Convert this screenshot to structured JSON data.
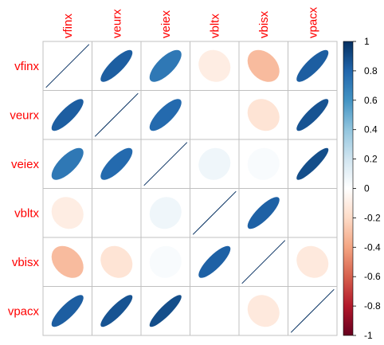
{
  "chart_data": {
    "type": "heatmap",
    "variables": [
      "vfinx",
      "veurx",
      "veiex",
      "vbltx",
      "vbisx",
      "vpacx"
    ],
    "matrix": [
      [
        1.0,
        0.83,
        0.72,
        -0.1,
        -0.32,
        0.83
      ],
      [
        0.83,
        1.0,
        0.78,
        0.0,
        -0.15,
        0.87
      ],
      [
        0.72,
        0.78,
        1.0,
        0.07,
        0.03,
        0.89
      ],
      [
        -0.1,
        0.0,
        0.07,
        1.0,
        0.82,
        0.0
      ],
      [
        -0.32,
        -0.15,
        0.03,
        0.82,
        1.0,
        -0.12
      ],
      [
        0.83,
        0.87,
        0.89,
        0.0,
        -0.12,
        1.0
      ]
    ],
    "colorbar": {
      "range": [
        -1,
        1
      ],
      "ticks": [
        "1",
        "0.8",
        "0.6",
        "0.4",
        "0.2",
        "0",
        "-0.2",
        "-0.4",
        "-0.6",
        "-0.8",
        "-1"
      ],
      "tick_values": [
        1,
        0.8,
        0.6,
        0.4,
        0.2,
        0,
        -0.2,
        -0.4,
        -0.6,
        -0.8,
        -1
      ],
      "palette": [
        "#67001F",
        "#B2182B",
        "#D6604D",
        "#F4A582",
        "#FDDBC7",
        "#FFFFFF",
        "#D1E5F0",
        "#92C5DE",
        "#4393C3",
        "#2166AC",
        "#053061"
      ]
    },
    "shape": "ellipse",
    "label_color": "#FF0000",
    "grid_color": "#C0C0C0"
  }
}
